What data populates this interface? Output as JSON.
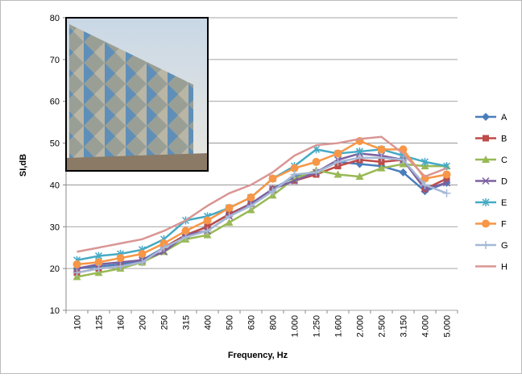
{
  "chart_data": {
    "type": "line",
    "x_label": "Frequency, Hz",
    "y_label": "SI,dB",
    "categories": [
      "100",
      "125",
      "160",
      "200",
      "250",
      "315",
      "400",
      "500",
      "630",
      "800",
      "1.000",
      "1.250",
      "1.600",
      "2.000",
      "2.500",
      "3.150",
      "4.000",
      "5.000"
    ],
    "ylim": [
      10,
      80
    ],
    "yticks": [
      10,
      20,
      30,
      40,
      50,
      60,
      70,
      80
    ],
    "grid": true,
    "legend": "right",
    "series": [
      {
        "name": "A",
        "color": "#4a7ebb",
        "marker": "diamond",
        "values": [
          20,
          20.5,
          21,
          22,
          25,
          28,
          30,
          33,
          35.5,
          39,
          42,
          43,
          45.5,
          45,
          44.5,
          43,
          38.5,
          40.5
        ]
      },
      {
        "name": "B",
        "color": "#be4b48",
        "marker": "square",
        "values": [
          19,
          20,
          20.5,
          21.5,
          25,
          28,
          30,
          33,
          35.5,
          39,
          41,
          42.5,
          44.5,
          46,
          45.5,
          46,
          39,
          41.5
        ]
      },
      {
        "name": "C",
        "color": "#98b954",
        "marker": "triangle",
        "values": [
          18,
          19,
          20,
          21.5,
          24,
          27,
          28,
          31,
          34,
          37.5,
          41.5,
          43.5,
          42.5,
          42,
          44,
          45,
          44.5,
          44.5
        ]
      },
      {
        "name": "D",
        "color": "#7d60a0",
        "marker": "x",
        "values": [
          20,
          21,
          21.5,
          22,
          24,
          28,
          29,
          32.5,
          35.5,
          39,
          41,
          43,
          46,
          47.5,
          47,
          46,
          39,
          40.5
        ]
      },
      {
        "name": "E",
        "color": "#46aac5",
        "marker": "star",
        "values": [
          22,
          23,
          23.5,
          24.5,
          27,
          31.5,
          32.5,
          34.5,
          37,
          41.5,
          44.5,
          48.5,
          47.5,
          48,
          48.5,
          47,
          45.5,
          44.5
        ]
      },
      {
        "name": "F",
        "color": "#f79646",
        "marker": "circle",
        "values": [
          21,
          21.5,
          22.5,
          23.5,
          26,
          29,
          31.5,
          34.5,
          37,
          41.5,
          44,
          45.5,
          47.5,
          50.5,
          48.5,
          48.5,
          41.5,
          42.5
        ]
      },
      {
        "name": "G",
        "color": "#a5b8d6",
        "marker": "plus",
        "values": [
          19,
          20,
          20.5,
          21.5,
          25,
          27.5,
          29,
          32.5,
          35,
          38.5,
          42.5,
          43,
          45.5,
          46.5,
          46.5,
          46,
          40,
          38
        ]
      },
      {
        "name": "H",
        "color": "#d99694",
        "marker": "none",
        "values": [
          24,
          25,
          26,
          27,
          29,
          31.5,
          35,
          38,
          40,
          43,
          47,
          49.5,
          50,
          51,
          51.5,
          47.5,
          42,
          44
        ]
      }
    ]
  }
}
